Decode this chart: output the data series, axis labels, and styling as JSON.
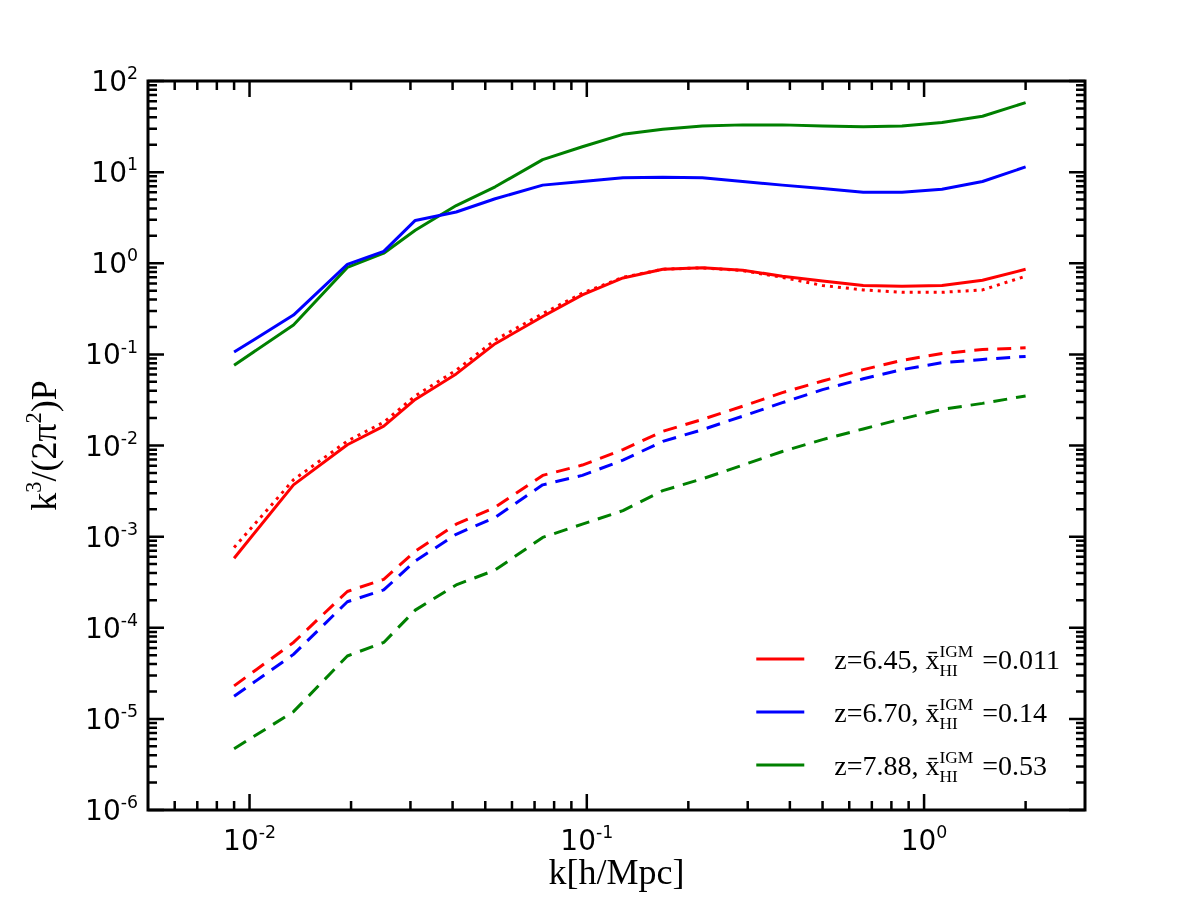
{
  "chart_data": {
    "type": "line",
    "xlabel": "k[h/Mpc]",
    "ylabel": "k$^{3}$/(2π$^{2}$)P",
    "log": "xy",
    "legend": "bottom right",
    "grid": false,
    "marker": "none",
    "xlim": [
      0.005,
      3
    ],
    "ylim": [
      1e-06,
      100
    ],
    "xticks": [
      {
        "value": 0.006,
        "label": null
      },
      {
        "value": 0.007,
        "label": null
      },
      {
        "value": 0.008,
        "label": null
      },
      {
        "value": 0.009,
        "label": null
      },
      {
        "value": 0.01,
        "label": "10$^{-2}$"
      },
      {
        "value": 0.02,
        "label": null
      },
      {
        "value": 0.03,
        "label": null
      },
      {
        "value": 0.04,
        "label": null
      },
      {
        "value": 0.05,
        "label": null
      },
      {
        "value": 0.06,
        "label": null
      },
      {
        "value": 0.07,
        "label": null
      },
      {
        "value": 0.08,
        "label": null
      },
      {
        "value": 0.09,
        "label": null
      },
      {
        "value": 0.1,
        "label": "10$^{-1}$"
      },
      {
        "value": 0.2,
        "label": null
      },
      {
        "value": 0.3,
        "label": null
      },
      {
        "value": 0.4,
        "label": null
      },
      {
        "value": 0.5,
        "label": null
      },
      {
        "value": 0.6,
        "label": null
      },
      {
        "value": 0.7,
        "label": null
      },
      {
        "value": 0.8,
        "label": null
      },
      {
        "value": 0.9,
        "label": null
      },
      {
        "value": 1,
        "label": "10$^{0}$"
      },
      {
        "value": 2,
        "label": null
      }
    ],
    "yticks": [
      {
        "value": 1e-06,
        "label": "10$^{-6}$"
      },
      {
        "value": 2e-06,
        "label": null
      },
      {
        "value": 3e-06,
        "label": null
      },
      {
        "value": 4e-06,
        "label": null
      },
      {
        "value": 5e-06,
        "label": null
      },
      {
        "value": 6e-06,
        "label": null
      },
      {
        "value": 7e-06,
        "label": null
      },
      {
        "value": 8e-06,
        "label": null
      },
      {
        "value": 9e-06,
        "label": null
      },
      {
        "value": 1e-05,
        "label": "10$^{-5}$"
      },
      {
        "value": 2e-05,
        "label": null
      },
      {
        "value": 3e-05,
        "label": null
      },
      {
        "value": 4e-05,
        "label": null
      },
      {
        "value": 5e-05,
        "label": null
      },
      {
        "value": 6e-05,
        "label": null
      },
      {
        "value": 7e-05,
        "label": null
      },
      {
        "value": 8e-05,
        "label": null
      },
      {
        "value": 9e-05,
        "label": null
      },
      {
        "value": 0.0001,
        "label": "10$^{-4}$"
      },
      {
        "value": 0.0002,
        "label": null
      },
      {
        "value": 0.0003,
        "label": null
      },
      {
        "value": 0.0004,
        "label": null
      },
      {
        "value": 0.0005,
        "label": null
      },
      {
        "value": 0.0006,
        "label": null
      },
      {
        "value": 0.0007,
        "label": null
      },
      {
        "value": 0.0008,
        "label": null
      },
      {
        "value": 0.0009,
        "label": null
      },
      {
        "value": 0.001,
        "label": "10$^{-3}$"
      },
      {
        "value": 0.002,
        "label": null
      },
      {
        "value": 0.003,
        "label": null
      },
      {
        "value": 0.004,
        "label": null
      },
      {
        "value": 0.005,
        "label": null
      },
      {
        "value": 0.006,
        "label": null
      },
      {
        "value": 0.007,
        "label": null
      },
      {
        "value": 0.008,
        "label": null
      },
      {
        "value": 0.009,
        "label": null
      },
      {
        "value": 0.01,
        "label": "10$^{-2}$"
      },
      {
        "value": 0.02,
        "label": null
      },
      {
        "value": 0.03,
        "label": null
      },
      {
        "value": 0.04,
        "label": null
      },
      {
        "value": 0.05,
        "label": null
      },
      {
        "value": 0.06,
        "label": null
      },
      {
        "value": 0.07,
        "label": null
      },
      {
        "value": 0.08,
        "label": null
      },
      {
        "value": 0.09,
        "label": null
      },
      {
        "value": 0.1,
        "label": "10$^{-1}$"
      },
      {
        "value": 0.2,
        "label": null
      },
      {
        "value": 0.3,
        "label": null
      },
      {
        "value": 0.4,
        "label": null
      },
      {
        "value": 0.5,
        "label": null
      },
      {
        "value": 0.6,
        "label": null
      },
      {
        "value": 0.7,
        "label": null
      },
      {
        "value": 0.8,
        "label": null
      },
      {
        "value": 0.9,
        "label": null
      },
      {
        "value": 1,
        "label": "10$^{0}$"
      },
      {
        "value": 2,
        "label": null
      },
      {
        "value": 3,
        "label": null
      },
      {
        "value": 4,
        "label": null
      },
      {
        "value": 5,
        "label": null
      },
      {
        "value": 6,
        "label": null
      },
      {
        "value": 7,
        "label": null
      },
      {
        "value": 8,
        "label": null
      },
      {
        "value": 9,
        "label": null
      },
      {
        "value": 10,
        "label": "10$^{1}$"
      },
      {
        "value": 20,
        "label": null
      },
      {
        "value": 30,
        "label": null
      },
      {
        "value": 40,
        "label": null
      },
      {
        "value": 50,
        "label": null
      },
      {
        "value": 60,
        "label": null
      },
      {
        "value": 70,
        "label": null
      },
      {
        "value": 80,
        "label": null
      },
      {
        "value": 90,
        "label": null
      },
      {
        "value": 100,
        "label": "10$^{2}$"
      }
    ],
    "x": [
      0.009,
      0.0135,
      0.0195,
      0.025,
      0.031,
      0.041,
      0.0535,
      0.074,
      0.097,
      0.128,
      0.168,
      0.22,
      0.29,
      0.38,
      0.5,
      0.66,
      0.86,
      1.13,
      1.49,
      2.0
    ],
    "series": [
      {
        "name": "z=6.45, x̄$_{HI}$$^{IGM}$ =0.011",
        "color": "#ff0000",
        "line_style": "solid",
        "values": [
          0.00058,
          0.0037,
          0.0102,
          0.0163,
          0.032,
          0.061,
          0.131,
          0.26,
          0.45,
          0.69,
          0.86,
          0.89,
          0.84,
          0.72,
          0.64,
          0.57,
          0.56,
          0.57,
          0.65,
          0.86
        ]
      },
      {
        "name": "z=6.70, x̄$_{HI}$$^{IGM}$ =0.14",
        "color": "#0000ff",
        "line_style": "solid",
        "values": [
          0.106,
          0.27,
          0.97,
          1.35,
          2.95,
          3.65,
          5.1,
          7.2,
          7.9,
          8.7,
          8.8,
          8.7,
          7.9,
          7.2,
          6.6,
          6.0,
          6.0,
          6.5,
          7.9,
          11.4
        ]
      },
      {
        "name": "z=7.88, x̄$_{HI}$$^{IGM}$ =0.53",
        "color": "#008000",
        "line_style": "solid",
        "values": [
          0.076,
          0.21,
          0.9,
          1.29,
          2.3,
          4.3,
          6.9,
          13.7,
          19,
          26,
          29.5,
          32,
          33,
          33,
          32,
          31.5,
          32,
          35,
          41,
          58
        ]
      },
      {
        "color": "#ff0000",
        "line_style": "dotted",
        "values": [
          0.00076,
          0.0042,
          0.0112,
          0.018,
          0.035,
          0.067,
          0.144,
          0.28,
          0.47,
          0.7,
          0.86,
          0.89,
          0.83,
          0.7,
          0.57,
          0.51,
          0.48,
          0.48,
          0.51,
          0.72
        ]
      },
      {
        "color": "#ff0000",
        "line_style": "dashed",
        "values": [
          2.3e-05,
          6.9e-05,
          0.00025,
          0.00034,
          0.00069,
          0.00137,
          0.0021,
          0.0047,
          0.0061,
          0.009,
          0.0143,
          0.0193,
          0.027,
          0.038,
          0.051,
          0.068,
          0.086,
          0.102,
          0.113,
          0.118
        ]
      },
      {
        "color": "#0000ff",
        "line_style": "dashed",
        "values": [
          1.77e-05,
          5.1e-05,
          0.000193,
          0.00026,
          0.00054,
          0.00106,
          0.00163,
          0.0037,
          0.0047,
          0.0069,
          0.0111,
          0.0149,
          0.021,
          0.0295,
          0.041,
          0.054,
          0.068,
          0.081,
          0.088,
          0.095
        ]
      },
      {
        "color": "#008000",
        "line_style": "dashed",
        "values": [
          4.7e-06,
          1.2e-05,
          4.9e-05,
          6.9e-05,
          0.000156,
          0.000295,
          0.00043,
          0.00098,
          0.00137,
          0.00193,
          0.0032,
          0.0043,
          0.0061,
          0.0086,
          0.0116,
          0.0152,
          0.0196,
          0.0249,
          0.029,
          0.035
        ]
      }
    ]
  }
}
